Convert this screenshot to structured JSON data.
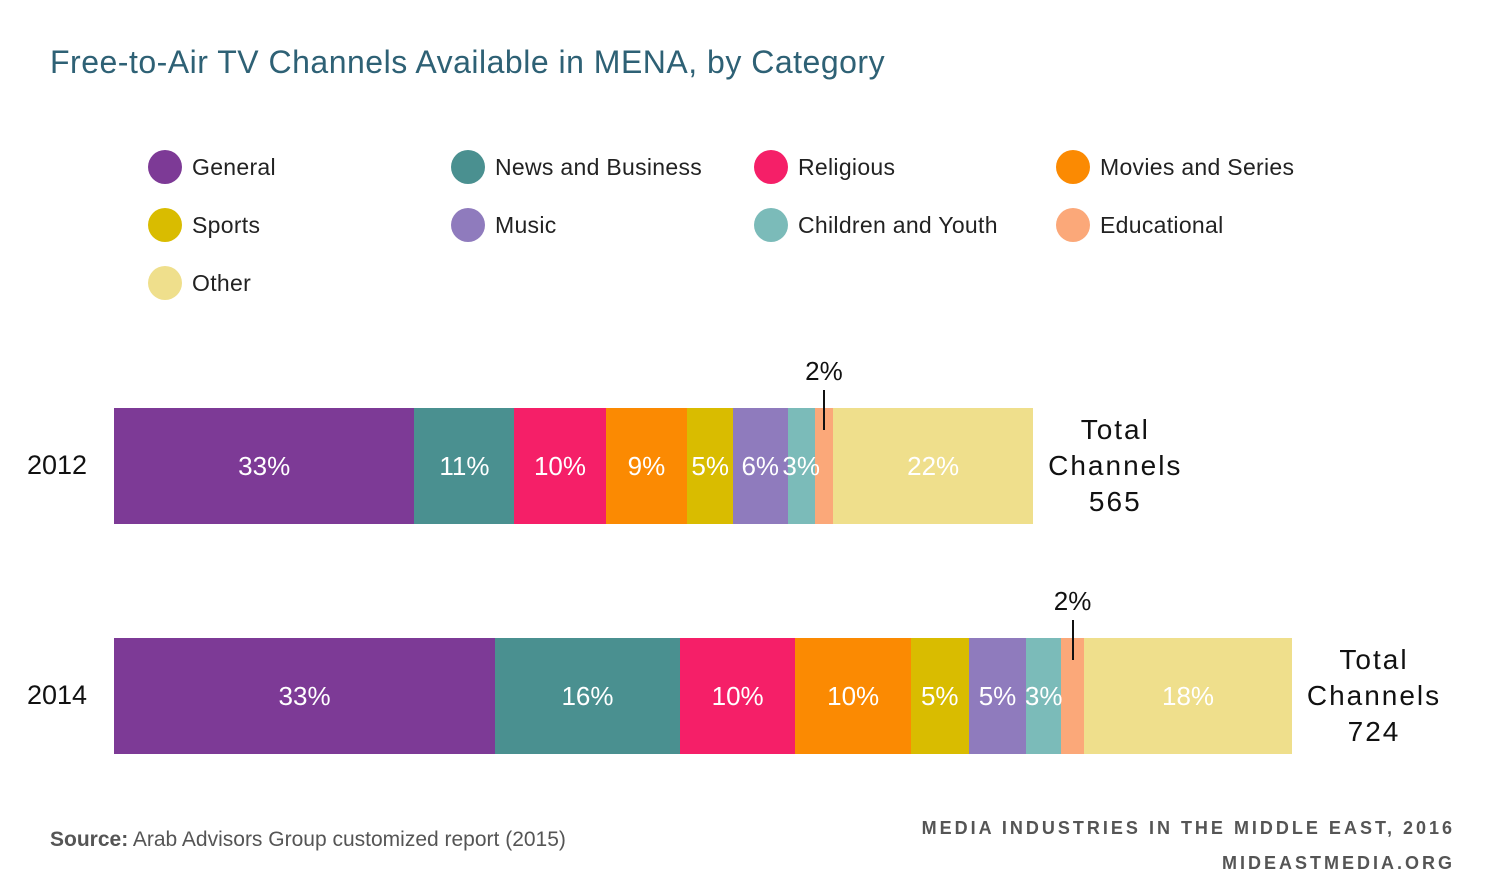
{
  "colors": {
    "General": "#7d3a96",
    "News and Business": "#4a9090",
    "Religious": "#f51f68",
    "Movies and Series": "#fb8a02",
    "Sports": "#d9bc00",
    "Music": "#8f7bbd",
    "Children and Youth": "#7bbbb9",
    "Educational": "#fba879",
    "Other": "#efdf8c"
  },
  "chart_data": {
    "type": "bar",
    "orientation": "horizontal",
    "stacked": true,
    "title": "Free-to-Air TV Channels Available in MENA, by Category",
    "legend_position": "top",
    "categories": [
      "2012",
      "2014"
    ],
    "series": [
      {
        "name": "General",
        "values": [
          33,
          33
        ],
        "labels": [
          "33%",
          "33%"
        ]
      },
      {
        "name": "News and Business",
        "values": [
          11,
          16
        ],
        "labels": [
          "11%",
          "16%"
        ]
      },
      {
        "name": "Religious",
        "values": [
          10,
          10
        ],
        "labels": [
          "10%",
          "10%"
        ]
      },
      {
        "name": "Movies and Series",
        "values": [
          9,
          10
        ],
        "labels": [
          "9%",
          "10%"
        ]
      },
      {
        "name": "Sports",
        "values": [
          5,
          5
        ],
        "labels": [
          "5%",
          "5%"
        ]
      },
      {
        "name": "Music",
        "values": [
          6,
          5
        ],
        "labels": [
          "6%",
          "5%"
        ]
      },
      {
        "name": "Children and Youth",
        "values": [
          3,
          3
        ],
        "labels": [
          "3%",
          "3%"
        ]
      },
      {
        "name": "Educational",
        "values": [
          2,
          2
        ],
        "labels": [
          "2%",
          "2%"
        ]
      },
      {
        "name": "Other",
        "values": [
          22,
          18
        ],
        "labels": [
          "22%",
          "18%"
        ]
      }
    ],
    "totals": [
      {
        "label": "Total",
        "label2": "Channels",
        "value": "565"
      },
      {
        "label": "Total",
        "label2": "Channels",
        "value": "724"
      }
    ],
    "total_channels": [
      565,
      724
    ]
  },
  "footer": {
    "source_label": "Source:",
    "source_text": "Arab Advisors Group customized report (2015)",
    "credit_line1": "MEDIA INDUSTRIES IN THE MIDDLE EAST, 2016",
    "credit_line2": "MIDEASTMEDIA.ORG"
  }
}
